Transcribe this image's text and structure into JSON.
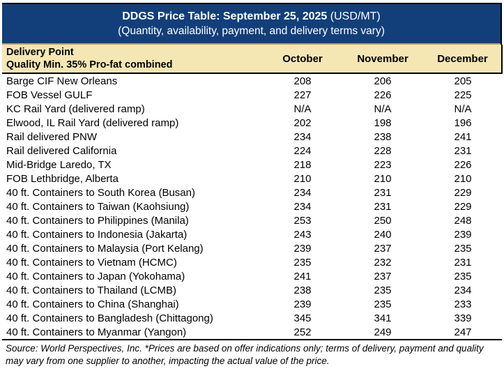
{
  "header": {
    "title_bold": "DDGS Price Table: September 25, 2025",
    "title_units": " (USD/MT)",
    "subtitle": "(Quantity, availability, payment, and delivery terms vary)"
  },
  "table": {
    "column_header": {
      "delivery_line1": "Delivery Point",
      "delivery_line2": "Quality Min. 35% Pro-fat combined",
      "months": [
        "October",
        "November",
        "December"
      ]
    },
    "rows": [
      {
        "delivery_point": "Barge CIF New Orleans",
        "october": "208",
        "november": "206",
        "december": "205"
      },
      {
        "delivery_point": "FOB Vessel GULF",
        "october": "227",
        "november": "226",
        "december": "225"
      },
      {
        "delivery_point": "KC Rail Yard (delivered ramp)",
        "october": "N/A",
        "november": "N/A",
        "december": "N/A"
      },
      {
        "delivery_point": "Elwood, IL Rail Yard (delivered ramp)",
        "october": "202",
        "november": "198",
        "december": "196"
      },
      {
        "delivery_point": "Rail delivered PNW",
        "october": "234",
        "november": "238",
        "december": "241"
      },
      {
        "delivery_point": "Rail delivered California",
        "october": "224",
        "november": "228",
        "december": "231"
      },
      {
        "delivery_point": "Mid-Bridge Laredo, TX",
        "october": "218",
        "november": "223",
        "december": "226"
      },
      {
        "delivery_point": "FOB Lethbridge, Alberta",
        "october": "210",
        "november": "210",
        "december": "210"
      },
      {
        "delivery_point": "40 ft. Containers to South Korea (Busan)",
        "october": "234",
        "november": "231",
        "december": "229"
      },
      {
        "delivery_point": "40 ft. Containers to Taiwan (Kaohsiung)",
        "october": "234",
        "november": "231",
        "december": "229"
      },
      {
        "delivery_point": "40 ft. Containers to Philippines (Manila)",
        "october": "253",
        "november": "250",
        "december": "248"
      },
      {
        "delivery_point": "40 ft. Containers to Indonesia (Jakarta)",
        "october": "243",
        "november": "240",
        "december": "239"
      },
      {
        "delivery_point": "40 ft. Containers to Malaysia (Port Kelang)",
        "october": "239",
        "november": "237",
        "december": "235"
      },
      {
        "delivery_point": "40 ft. Containers to Vietnam (HCMC)",
        "october": "235",
        "november": "232",
        "december": "231"
      },
      {
        "delivery_point": "40 ft. Containers to Japan (Yokohama)",
        "october": "241",
        "november": "237",
        "december": "235"
      },
      {
        "delivery_point": "40 ft. Containers to Thailand (LCMB)",
        "october": "238",
        "november": "235",
        "december": "234"
      },
      {
        "delivery_point": "40 ft. Containers to China (Shanghai)",
        "october": "239",
        "november": "235",
        "december": "233"
      },
      {
        "delivery_point": "40 ft. Containers to Bangladesh (Chittagong)",
        "october": "345",
        "november": "341",
        "december": "339"
      },
      {
        "delivery_point": "40 ft. Containers to Myanmar (Yangon)",
        "october": "252",
        "november": "249",
        "december": "247"
      }
    ]
  },
  "footnote": "Source: World Perspectives, Inc. *Prices are based on offer indications only; terms of delivery, payment and quality may vary from one supplier to another, impacting the actual value of the price.",
  "colors": {
    "header_navy": "#123F7A",
    "gold_divider": "#BFA24A",
    "subheader_tan": "#F5E7B4",
    "rule_black": "#000000",
    "header_text": "#FFFFFF"
  }
}
